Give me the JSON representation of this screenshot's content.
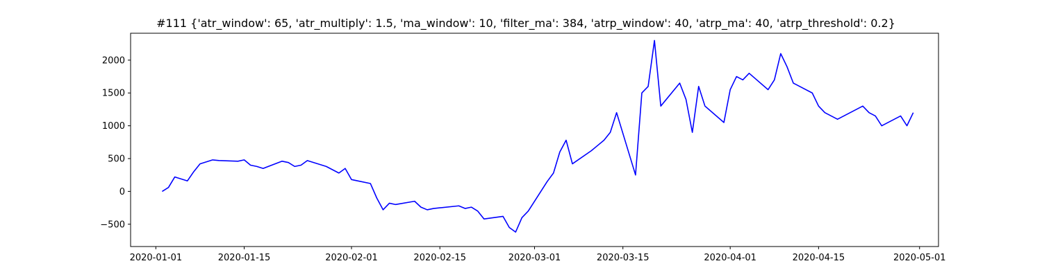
{
  "chart_data": {
    "type": "line",
    "title": "#111 {'atr_window': 65, 'atr_multiply': 1.5, 'ma_window': 10, 'filter_ma': 384, 'atrp_window': 40, 'atrp_ma': 40, 'atrp_threshold': 0.2}",
    "xlabel": "",
    "ylabel": "",
    "grid": false,
    "legend": "none",
    "xlim": [
      "2019-12-28",
      "2020-05-04"
    ],
    "ylim": [
      -840,
      2410
    ],
    "x_ticks": [
      "2020-01-01",
      "2020-01-15",
      "2020-02-01",
      "2020-02-15",
      "2020-03-01",
      "2020-03-15",
      "2020-04-01",
      "2020-04-15",
      "2020-05-01"
    ],
    "y_ticks": [
      -500,
      0,
      500,
      1000,
      1500,
      2000
    ],
    "series": [
      {
        "color": "#0000ff",
        "x": [
          "2020-01-02",
          "2020-01-03",
          "2020-01-04",
          "2020-01-05",
          "2020-01-06",
          "2020-01-07",
          "2020-01-08",
          "2020-01-09",
          "2020-01-10",
          "2020-01-11",
          "2020-01-14",
          "2020-01-15",
          "2020-01-16",
          "2020-01-17",
          "2020-01-18",
          "2020-01-21",
          "2020-01-22",
          "2020-01-23",
          "2020-01-24",
          "2020-01-25",
          "2020-01-28",
          "2020-01-29",
          "2020-01-30",
          "2020-01-31",
          "2020-02-01",
          "2020-02-04",
          "2020-02-05",
          "2020-02-06",
          "2020-02-07",
          "2020-02-08",
          "2020-02-11",
          "2020-02-12",
          "2020-02-13",
          "2020-02-14",
          "2020-02-15",
          "2020-02-18",
          "2020-02-19",
          "2020-02-20",
          "2020-02-21",
          "2020-02-22",
          "2020-02-25",
          "2020-02-26",
          "2020-02-27",
          "2020-02-28",
          "2020-02-29",
          "2020-03-03",
          "2020-03-04",
          "2020-03-05",
          "2020-03-06",
          "2020-03-07",
          "2020-03-10",
          "2020-03-11",
          "2020-03-12",
          "2020-03-13",
          "2020-03-14",
          "2020-03-17",
          "2020-03-18",
          "2020-03-19",
          "2020-03-20",
          "2020-03-21",
          "2020-03-24",
          "2020-03-25",
          "2020-03-26",
          "2020-03-27",
          "2020-03-28",
          "2020-03-31",
          "2020-04-01",
          "2020-04-02",
          "2020-04-03",
          "2020-04-04",
          "2020-04-07",
          "2020-04-08",
          "2020-04-09",
          "2020-04-10",
          "2020-04-11",
          "2020-04-14",
          "2020-04-15",
          "2020-04-16",
          "2020-04-17",
          "2020-04-18",
          "2020-04-21",
          "2020-04-22",
          "2020-04-23",
          "2020-04-24",
          "2020-04-25",
          "2020-04-28",
          "2020-04-29",
          "2020-04-30"
        ],
        "y": [
          0,
          60,
          220,
          190,
          160,
          300,
          420,
          450,
          480,
          470,
          460,
          480,
          400,
          380,
          350,
          460,
          440,
          380,
          400,
          470,
          380,
          330,
          280,
          350,
          180,
          120,
          -100,
          -280,
          -180,
          -200,
          -150,
          -240,
          -280,
          -260,
          -250,
          -220,
          -260,
          -240,
          -300,
          -420,
          -380,
          -550,
          -620,
          -400,
          -300,
          150,
          280,
          600,
          780,
          420,
          620,
          700,
          780,
          900,
          1200,
          250,
          1500,
          1600,
          2300,
          1300,
          1650,
          1400,
          900,
          1600,
          1300,
          1050,
          1550,
          1750,
          1700,
          1800,
          1550,
          1700,
          2100,
          1900,
          1650,
          1500,
          1300,
          1200,
          1150,
          1100,
          1250,
          1300,
          1200,
          1150,
          1000,
          1150,
          1000,
          1200
        ]
      }
    ]
  }
}
